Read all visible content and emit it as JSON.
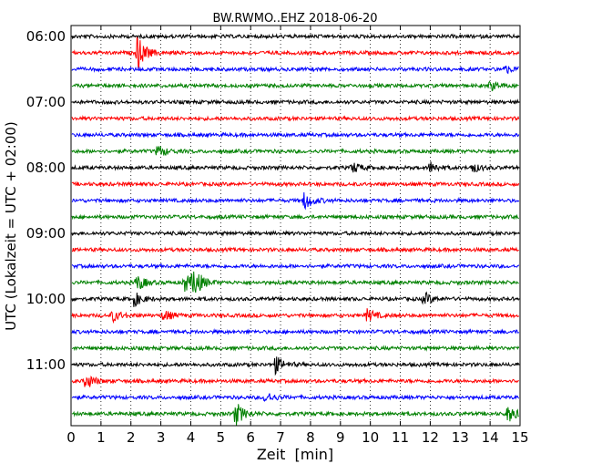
{
  "chart_data": {
    "type": "line",
    "title": "BW.RWMO..EHZ 2018-06-20",
    "xlabel": "Zeit  [min]",
    "ylabel": "UTC (Lokalzeit = UTC + 02:00)",
    "xlim": [
      0,
      15
    ],
    "x_ticks": [
      "0",
      "1",
      "2",
      "3",
      "4",
      "5",
      "6",
      "7",
      "8",
      "9",
      "10",
      "11",
      "12",
      "13",
      "14",
      "15"
    ],
    "y_ticks": [
      {
        "label": "06:00",
        "row": 0
      },
      {
        "label": "07:00",
        "row": 4
      },
      {
        "label": "08:00",
        "row": 8
      },
      {
        "label": "09:00",
        "row": 12
      },
      {
        "label": "10:00",
        "row": 16
      },
      {
        "label": "11:00",
        "row": 20
      }
    ],
    "row_start_times": [
      "06:00",
      "06:15",
      "06:30",
      "06:45",
      "07:00",
      "07:15",
      "07:30",
      "07:45",
      "08:00",
      "08:15",
      "08:30",
      "08:45",
      "09:00",
      "09:15",
      "09:30",
      "09:45",
      "10:00",
      "10:15",
      "10:30",
      "10:45",
      "11:00",
      "11:15",
      "11:30",
      "11:45"
    ],
    "grid": "vertical-dotted",
    "series_colors": [
      "#000000",
      "#ff0000",
      "#0000ff",
      "#008000"
    ],
    "events": [
      {
        "row": 1,
        "minute": 2.2,
        "amplitude": 1.0
      },
      {
        "row": 2,
        "minute": 14.5,
        "amplitude": 0.2
      },
      {
        "row": 3,
        "minute": 14.0,
        "amplitude": 0.25
      },
      {
        "row": 7,
        "minute": 2.9,
        "amplitude": 0.35
      },
      {
        "row": 8,
        "minute": 9.4,
        "amplitude": 0.3
      },
      {
        "row": 8,
        "minute": 12.0,
        "amplitude": 0.3
      },
      {
        "row": 8,
        "minute": 13.4,
        "amplitude": 0.25
      },
      {
        "row": 10,
        "minute": 7.8,
        "amplitude": 0.5
      },
      {
        "row": 15,
        "minute": 2.2,
        "amplitude": 0.45
      },
      {
        "row": 15,
        "minute": 3.8,
        "amplitude": 0.5
      },
      {
        "row": 15,
        "minute": 4.1,
        "amplitude": 0.75
      },
      {
        "row": 16,
        "minute": 2.1,
        "amplitude": 0.4
      },
      {
        "row": 16,
        "minute": 11.8,
        "amplitude": 0.35
      },
      {
        "row": 17,
        "minute": 1.4,
        "amplitude": 0.3
      },
      {
        "row": 17,
        "minute": 3.1,
        "amplitude": 0.3
      },
      {
        "row": 17,
        "minute": 9.9,
        "amplitude": 0.35
      },
      {
        "row": 20,
        "minute": 6.8,
        "amplitude": 0.5
      },
      {
        "row": 21,
        "minute": 0.5,
        "amplitude": 0.45
      },
      {
        "row": 22,
        "minute": 6.5,
        "amplitude": 0.3
      },
      {
        "row": 23,
        "minute": 5.5,
        "amplitude": 0.65
      },
      {
        "row": 23,
        "minute": 14.6,
        "amplitude": 0.45
      }
    ]
  }
}
